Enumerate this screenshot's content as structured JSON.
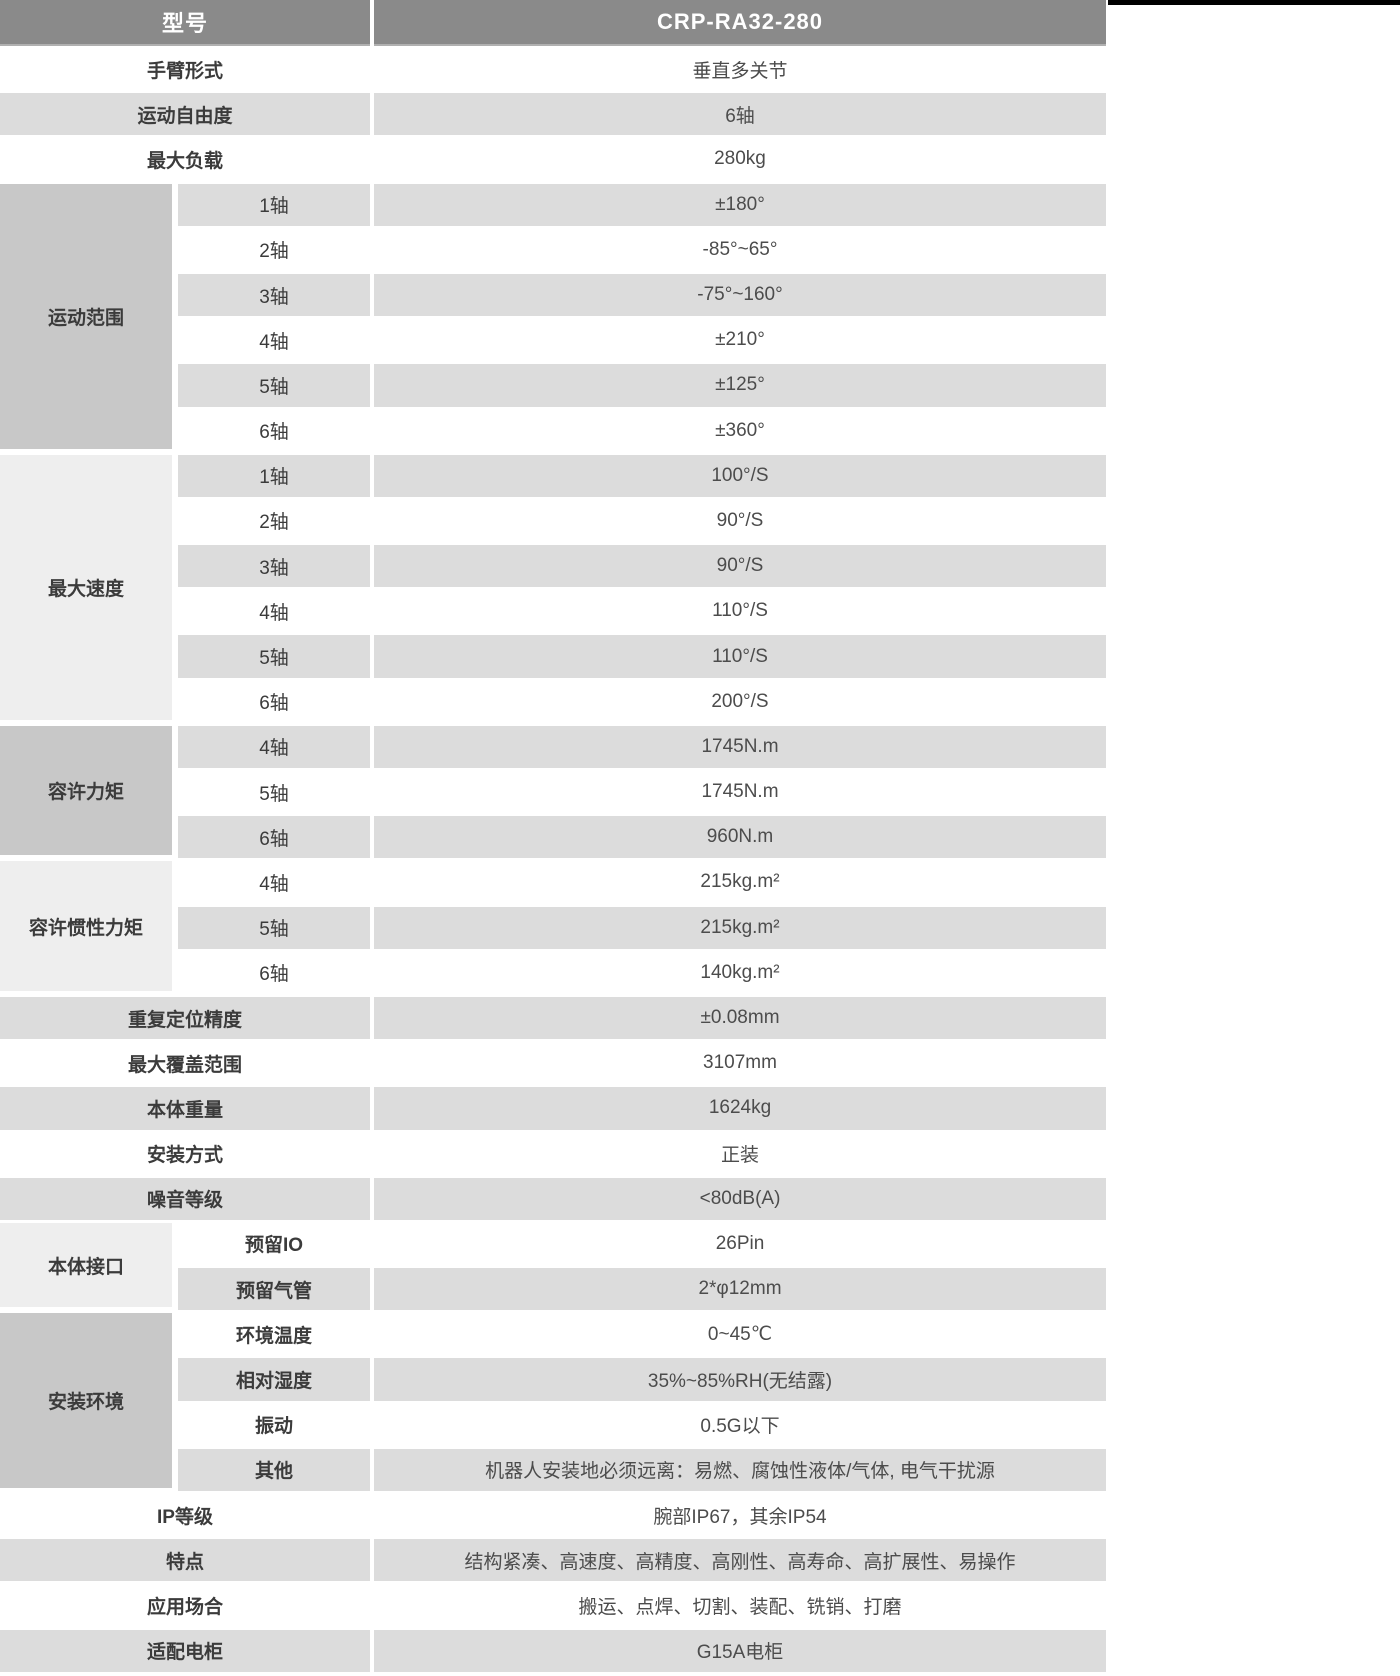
{
  "colors": {
    "header_bg": "#8a8a8a",
    "header_text": "#ffffff",
    "row_bg": "#ffffff",
    "row_alt_bg": "#dcdcdc",
    "group_dark_bg": "#c8c8c8",
    "group_light_bg": "#eeeeee",
    "label_text": "#3b3b3b",
    "value_text": "#4c4c4c",
    "top_strip": "#000000"
  },
  "table": {
    "header": {
      "label": "型号",
      "value": "CRP-RA32-280"
    },
    "sections": [
      {
        "type": "simple",
        "id": "arm-type",
        "label": "手臂形式",
        "value": "垂直多关节"
      },
      {
        "type": "simple",
        "id": "dof",
        "label": "运动自由度",
        "value": "6轴"
      },
      {
        "type": "simple",
        "id": "max-payload",
        "label": "最大负载",
        "value": "280kg"
      },
      {
        "type": "group",
        "id": "motion-range",
        "label": "运动范围",
        "shade": "dark",
        "subBold": false,
        "rows": [
          {
            "sub": "1轴",
            "value": "±180°"
          },
          {
            "sub": "2轴",
            "value": "-85°~65°"
          },
          {
            "sub": "3轴",
            "value": "-75°~160°"
          },
          {
            "sub": "4轴",
            "value": "±210°"
          },
          {
            "sub": "5轴",
            "value": "±125°"
          },
          {
            "sub": "6轴",
            "value": "±360°"
          }
        ]
      },
      {
        "type": "group",
        "id": "max-speed",
        "label": "最大速度",
        "shade": "light",
        "subBold": false,
        "rows": [
          {
            "sub": "1轴",
            "value": "100°/S"
          },
          {
            "sub": "2轴",
            "value": "90°/S"
          },
          {
            "sub": "3轴",
            "value": "90°/S"
          },
          {
            "sub": "4轴",
            "value": "110°/S"
          },
          {
            "sub": "5轴",
            "value": "110°/S"
          },
          {
            "sub": "6轴",
            "value": "200°/S"
          }
        ]
      },
      {
        "type": "group",
        "id": "allowable-torque",
        "label": "容许力矩",
        "shade": "dark",
        "subBold": false,
        "rows": [
          {
            "sub": "4轴",
            "value": "1745N.m"
          },
          {
            "sub": "5轴",
            "value": "1745N.m"
          },
          {
            "sub": "6轴",
            "value": "960N.m"
          }
        ]
      },
      {
        "type": "group",
        "id": "allowable-inertia",
        "label": "容许惯性力矩",
        "shade": "light",
        "subBold": false,
        "rows": [
          {
            "sub": "4轴",
            "value": "215kg.m²"
          },
          {
            "sub": "5轴",
            "value": "215kg.m²"
          },
          {
            "sub": "6轴",
            "value": "140kg.m²"
          }
        ]
      },
      {
        "type": "simple",
        "id": "repeatability",
        "label": "重复定位精度",
        "value": "±0.08mm"
      },
      {
        "type": "simple",
        "id": "max-reach",
        "label": "最大覆盖范围",
        "value": "3107mm"
      },
      {
        "type": "simple",
        "id": "body-weight",
        "label": "本体重量",
        "value": "1624kg"
      },
      {
        "type": "simple",
        "id": "mounting",
        "label": "安装方式",
        "value": "正装"
      },
      {
        "type": "simple",
        "id": "noise-level",
        "label": "噪音等级",
        "value": "<80dB(A)"
      },
      {
        "type": "group",
        "id": "body-interface",
        "label": "本体接口",
        "shade": "light",
        "subBold": true,
        "rows": [
          {
            "sub": "预留IO",
            "value": "26Pin"
          },
          {
            "sub": "预留气管",
            "value": "2*φ12mm"
          }
        ]
      },
      {
        "type": "group",
        "id": "install-environment",
        "label": "安装环境",
        "shade": "dark",
        "subBold": true,
        "rows": [
          {
            "sub": "环境温度",
            "value": "0~45℃"
          },
          {
            "sub": "相对湿度",
            "value": "35%~85%RH(无结露)"
          },
          {
            "sub": "振动",
            "value": "0.5G以下"
          },
          {
            "sub": "其他",
            "value": "机器人安装地必须远离：易燃、腐蚀性液体/气体, 电气干扰源"
          }
        ]
      },
      {
        "type": "simple",
        "id": "ip-rating",
        "label": "IP等级",
        "value": "腕部IP67，其余IP54"
      },
      {
        "type": "simple",
        "id": "features",
        "label": "特点",
        "value": "结构紧凑、高速度、高精度、高刚性、高寿命、高扩展性、易操作"
      },
      {
        "type": "simple",
        "id": "applications",
        "label": "应用场合",
        "value": "搬运、点焊、切割、装配、铣销、打磨"
      },
      {
        "type": "simple",
        "id": "cabinet",
        "label": "适配电柜",
        "value": "G15A电柜"
      }
    ]
  }
}
